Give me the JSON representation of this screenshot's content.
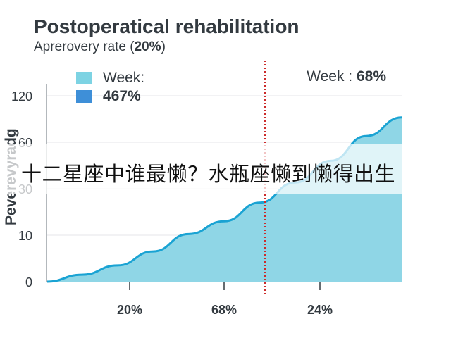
{
  "chart_data": {
    "type": "area",
    "title": "Postoperatical rehabilitation",
    "subtitle": {
      "prefix": "Aprerovery rate (",
      "value": "20%",
      "suffix": ")"
    },
    "ylabel": "Peverevyradg",
    "ylim": [
      0,
      130
    ],
    "y_tick_labels": [
      "0",
      "10",
      "30",
      "60",
      "120"
    ],
    "x_tick_labels": [
      "20%",
      "68%",
      "24%"
    ],
    "legend": [
      {
        "label": "Week:",
        "color": "#7dd3e3",
        "bold": false
      },
      {
        "label": "467%",
        "color": "#3e8fd8",
        "bold": true
      }
    ],
    "marker": {
      "prefix": "Week : ",
      "value": "68%",
      "color": "#cc2b2b"
    },
    "series": [
      {
        "x": [
          0,
          0.1,
          0.2,
          0.3,
          0.4,
          0.5,
          0.6,
          0.7,
          0.8,
          0.9,
          1.0
        ],
        "values": [
          0,
          1.5,
          3.5,
          6.5,
          10.5,
          16,
          24,
          34,
          48,
          68,
          92
        ],
        "line_color": "#1aa3d3",
        "fill_color": "#8fd6e6"
      }
    ],
    "grid": true,
    "legend_position": "top-left"
  },
  "overlay_caption": "十二星座中谁最懒？水瓶座懒到懒得出生"
}
